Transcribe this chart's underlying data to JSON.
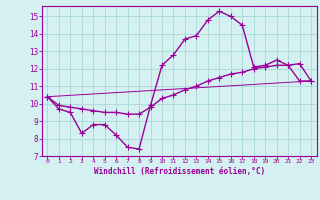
{
  "xlabel": "Windchill (Refroidissement éolien,°C)",
  "bg_color": "#d4f0f0",
  "line_color": "#990099",
  "xlim": [
    -0.5,
    23.5
  ],
  "ylim": [
    7,
    15.6
  ],
  "xticks": [
    0,
    1,
    2,
    3,
    4,
    5,
    6,
    7,
    8,
    9,
    10,
    11,
    12,
    13,
    14,
    15,
    16,
    17,
    18,
    19,
    20,
    21,
    22,
    23
  ],
  "yticks": [
    7,
    8,
    9,
    10,
    11,
    12,
    13,
    14,
    15
  ],
  "grid_color": "#aad8d8",
  "series1_x": [
    0,
    1,
    2,
    3,
    4,
    5,
    6,
    7,
    8,
    9,
    10,
    11,
    12,
    13,
    14,
    15,
    16,
    17,
    18,
    19,
    20,
    21,
    22,
    23
  ],
  "series1_y": [
    10.4,
    9.7,
    9.5,
    8.3,
    8.8,
    8.8,
    8.2,
    7.5,
    7.4,
    9.9,
    12.2,
    12.8,
    13.7,
    13.9,
    14.8,
    15.3,
    15.0,
    14.5,
    12.1,
    12.2,
    12.5,
    12.2,
    11.3,
    11.3
  ],
  "series2_x": [
    0,
    1,
    2,
    3,
    4,
    5,
    6,
    7,
    8,
    9,
    10,
    11,
    12,
    13,
    14,
    15,
    16,
    17,
    18,
    19,
    20,
    21,
    22,
    23
  ],
  "series2_y": [
    10.4,
    9.9,
    9.8,
    9.7,
    9.6,
    9.5,
    9.5,
    9.4,
    9.4,
    9.8,
    10.3,
    10.5,
    10.8,
    11.0,
    11.3,
    11.5,
    11.7,
    11.8,
    12.0,
    12.1,
    12.2,
    12.2,
    12.3,
    11.3
  ],
  "series3_x": [
    0,
    23
  ],
  "series3_y": [
    10.4,
    11.3
  ],
  "marker": "+",
  "markersize": 4,
  "linewidth": 1.0
}
